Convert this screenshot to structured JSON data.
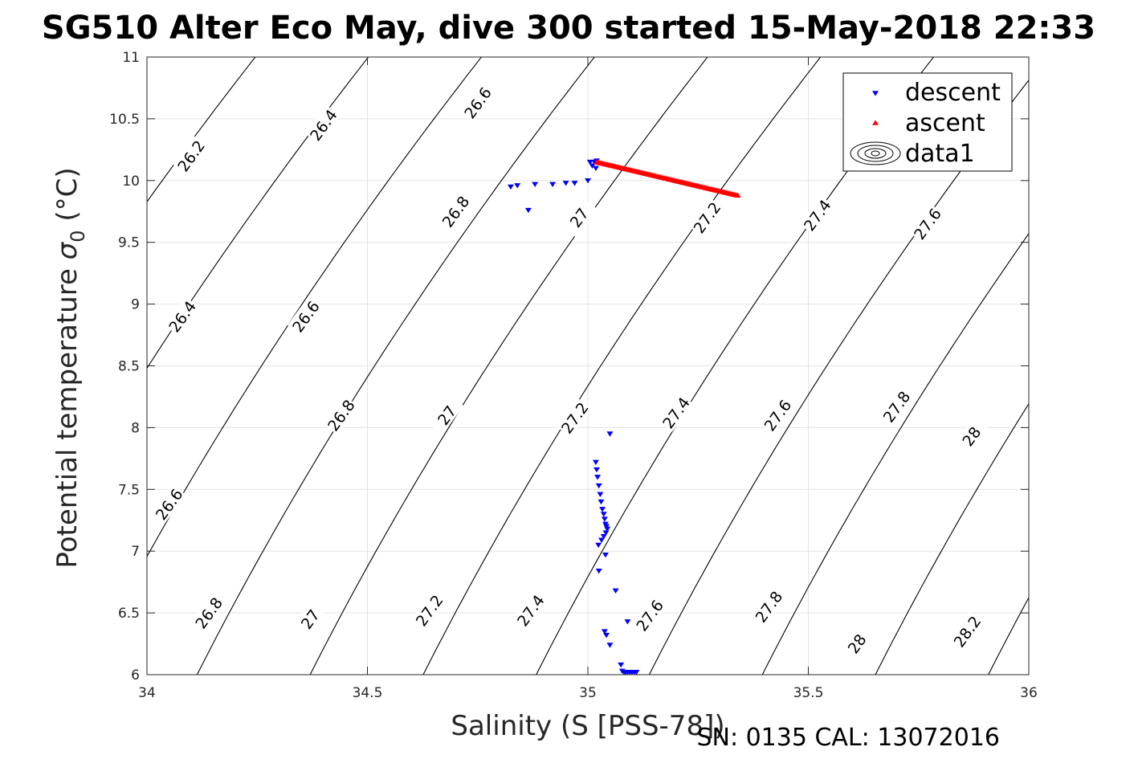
{
  "chart_data": {
    "type": "scatter",
    "title": "SG510 Alter Eco May, dive 300 started 15-May-2018 22:33",
    "xlabel": "Salinity (S [PSS-78])",
    "ylabel": "Potential temperature σ0 (°C)",
    "ylabel_main": "Potential temperature ",
    "ylabel_sigma": "σ",
    "ylabel_sub": "0",
    "ylabel_unit": " (°C)",
    "footer": "SN: 0135  CAL: 13072016",
    "xlim": [
      34,
      36
    ],
    "ylim": [
      6,
      11
    ],
    "x_ticks": [
      34,
      34.5,
      35,
      35.5,
      36
    ],
    "x_tick_labels": [
      "34",
      "34.5",
      "35",
      "35.5",
      "36"
    ],
    "y_ticks": [
      6,
      6.5,
      7,
      7.5,
      8,
      8.5,
      9,
      9.5,
      10,
      10.5,
      11
    ],
    "y_tick_labels": [
      "6",
      "6.5",
      "7",
      "7.5",
      "8",
      "8.5",
      "9",
      "9.5",
      "10",
      "10.5",
      "11"
    ],
    "grid": true,
    "legend_position": "top-right",
    "legend": [
      {
        "label": "descent",
        "marker": "triangle-down",
        "color": "#0000ff"
      },
      {
        "label": "ascent",
        "marker": "triangle-up",
        "color": "#ff0000"
      },
      {
        "label": "data1",
        "marker": "contour",
        "color": "#000000"
      }
    ],
    "contours": {
      "levels": [
        26.2,
        26.4,
        26.6,
        26.8,
        27.0,
        27.2,
        27.4,
        27.6,
        27.8,
        28.0,
        28.2
      ],
      "level_labels": [
        "26.2",
        "26.4",
        "26.6",
        "26.8",
        "27",
        "27.2",
        "27.4",
        "27.6",
        "27.8",
        "28",
        "28.2"
      ],
      "line_color": "#000000",
      "labels": [
        {
          "text": "26.2",
          "s": 34.1,
          "t": 10.2
        },
        {
          "text": "26.4",
          "s": 34.4,
          "t": 10.45
        },
        {
          "text": "26.6",
          "s": 34.75,
          "t": 10.63
        },
        {
          "text": "26.4",
          "s": 34.08,
          "t": 8.9
        },
        {
          "text": "26.6",
          "s": 34.36,
          "t": 8.9
        },
        {
          "text": "26.8",
          "s": 34.7,
          "t": 9.75
        },
        {
          "text": "27",
          "s": 34.98,
          "t": 9.7
        },
        {
          "text": "27.2",
          "s": 35.27,
          "t": 9.7
        },
        {
          "text": "27.4",
          "s": 35.52,
          "t": 9.72
        },
        {
          "text": "27.6",
          "s": 35.77,
          "t": 9.65
        },
        {
          "text": "26.8",
          "s": 34.44,
          "t": 8.1
        },
        {
          "text": "27",
          "s": 34.68,
          "t": 8.1
        },
        {
          "text": "27.2",
          "s": 34.97,
          "t": 8.08
        },
        {
          "text": "27.4",
          "s": 35.2,
          "t": 8.12
        },
        {
          "text": "27.6",
          "s": 35.43,
          "t": 8.1
        },
        {
          "text": "27.8",
          "s": 35.7,
          "t": 8.17
        },
        {
          "text": "28",
          "s": 35.87,
          "t": 7.93
        },
        {
          "text": "26.6",
          "s": 34.05,
          "t": 7.38
        },
        {
          "text": "26.8",
          "s": 34.14,
          "t": 6.5
        },
        {
          "text": "27",
          "s": 34.37,
          "t": 6.45
        },
        {
          "text": "27.2",
          "s": 34.64,
          "t": 6.52
        },
        {
          "text": "27.4",
          "s": 34.87,
          "t": 6.52
        },
        {
          "text": "27.6",
          "s": 35.14,
          "t": 6.48
        },
        {
          "text": "27.8",
          "s": 35.41,
          "t": 6.55
        },
        {
          "text": "28",
          "s": 35.61,
          "t": 6.25
        },
        {
          "text": "28.2",
          "s": 35.86,
          "t": 6.35
        }
      ]
    },
    "series": [
      {
        "name": "descent",
        "marker": "triangle-down",
        "color": "#0000ff",
        "x": [
          35.005,
          35.01,
          35.015,
          35.018,
          35.02,
          35.0,
          34.97,
          34.95,
          34.92,
          34.88,
          34.84,
          34.825,
          34.865,
          35.05,
          35.018,
          35.02,
          35.022,
          35.025,
          35.028,
          35.03,
          35.033,
          35.036,
          35.038,
          35.04,
          35.042,
          35.044,
          35.041,
          35.036,
          35.031,
          35.024,
          35.04,
          35.025,
          35.063,
          35.09,
          35.038,
          35.042,
          35.05,
          35.075,
          35.078,
          35.082,
          35.086,
          35.09,
          35.095,
          35.1,
          35.105,
          35.11
        ],
        "y": [
          10.15,
          10.12,
          10.15,
          10.1,
          10.16,
          10.0,
          9.98,
          9.98,
          9.97,
          9.97,
          9.96,
          9.95,
          9.76,
          7.95,
          7.72,
          7.66,
          7.6,
          7.53,
          7.46,
          7.4,
          7.34,
          7.3,
          7.26,
          7.22,
          7.2,
          7.18,
          7.15,
          7.12,
          7.09,
          7.05,
          6.97,
          6.84,
          6.68,
          6.43,
          6.35,
          6.32,
          6.24,
          6.08,
          6.03,
          6.02,
          6.02,
          6.02,
          6.02,
          6.02,
          6.02,
          6.02
        ]
      },
      {
        "name": "ascent",
        "marker": "triangle-up",
        "color": "#ff0000",
        "x_range": [
          35.02,
          35.34
        ],
        "y_range": [
          10.15,
          9.88
        ],
        "n_points": 90
      }
    ]
  }
}
